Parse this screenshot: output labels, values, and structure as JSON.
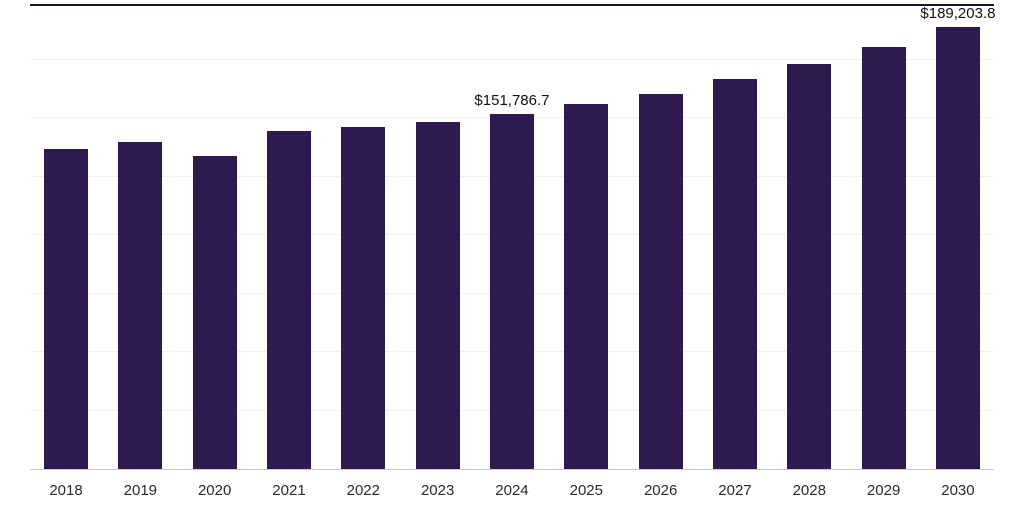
{
  "chart_data": {
    "type": "bar",
    "title": "",
    "xlabel": "",
    "ylabel": "",
    "categories": [
      "2018",
      "2019",
      "2020",
      "2021",
      "2022",
      "2023",
      "2024",
      "2025",
      "2026",
      "2027",
      "2028",
      "2029",
      "2030"
    ],
    "values": [
      136900,
      139800,
      133800,
      144500,
      146300,
      148300,
      151786.7,
      155900,
      160200,
      166600,
      173000,
      180600,
      189203.8
    ],
    "ylim": [
      0,
      198000
    ],
    "grid": "horizontal",
    "grid_step": 25000,
    "legend": "none",
    "bar_color": "#2e1a4e",
    "annotations": [
      {
        "category": "2024",
        "text": "$151,786.7"
      },
      {
        "category": "2030",
        "text": "$189,203.8"
      }
    ]
  }
}
